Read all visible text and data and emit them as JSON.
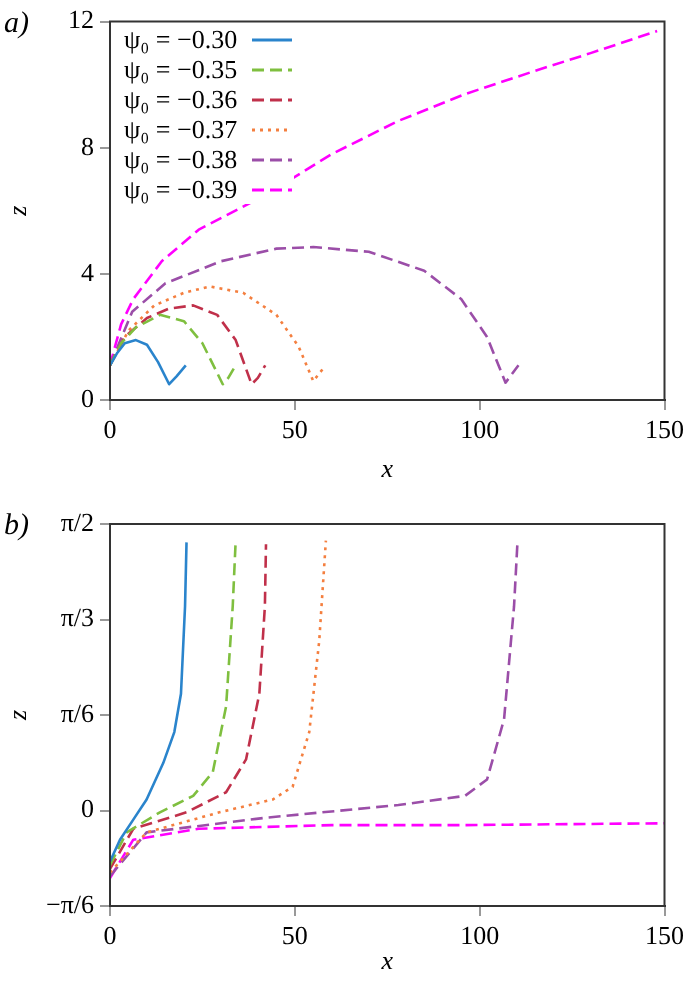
{
  "chart_data": [
    {
      "type": "line",
      "title": "a)",
      "xlabel": "x",
      "ylabel": "z",
      "xlim": [
        0,
        150
      ],
      "ylim": [
        0,
        12
      ],
      "xticks": [
        0,
        50,
        100,
        150
      ],
      "yticks": [
        0,
        4,
        8,
        12
      ],
      "legend": "top left",
      "series": [
        {
          "name": "ψ₀ = −0.30",
          "color": "#2a84cc",
          "line_style": "solid",
          "x": [
            0,
            2,
            4,
            7,
            10,
            13,
            16,
            18,
            20.5
          ],
          "values": [
            1.1,
            1.5,
            1.8,
            1.9,
            1.75,
            1.2,
            0.5,
            0.75,
            1.1
          ]
        },
        {
          "name": "ψ₀ = −0.35",
          "color": "#7fbf3f",
          "line_style": "dashed",
          "x": [
            0,
            3,
            7,
            13.5,
            20,
            25,
            30.5,
            32,
            34
          ],
          "values": [
            1.1,
            1.8,
            2.3,
            2.7,
            2.5,
            1.8,
            0.5,
            0.7,
            1.1
          ]
        },
        {
          "name": "ψ₀ = −0.36",
          "color": "#c0304a",
          "line_style": "dashed",
          "x": [
            0,
            4,
            10,
            16,
            22.5,
            29,
            34,
            38.3,
            40,
            42
          ],
          "values": [
            1.1,
            2.0,
            2.6,
            2.9,
            3.0,
            2.7,
            1.9,
            0.5,
            0.7,
            1.1
          ]
        },
        {
          "name": "ψ₀ = −0.37",
          "color": "#f47f3f",
          "line_style": "dotted",
          "x": [
            0,
            5,
            12,
            20,
            27,
            36,
            45,
            51,
            55,
            58
          ],
          "values": [
            1.1,
            2.2,
            3.0,
            3.4,
            3.6,
            3.4,
            2.7,
            1.7,
            0.6,
            1.05
          ]
        },
        {
          "name": "ψ₀ = −0.38",
          "color": "#9b4ea8",
          "line_style": "dashed",
          "x": [
            0,
            6,
            15,
            30,
            45,
            55,
            70,
            85,
            95,
            102,
            107,
            110.5
          ],
          "values": [
            1.1,
            2.8,
            3.7,
            4.4,
            4.8,
            4.85,
            4.7,
            4.1,
            3.2,
            2.0,
            0.55,
            1.1
          ]
        },
        {
          "name": "ψ₀ = −0.39",
          "color": "#ff00ff",
          "line_style": "dashed",
          "x": [
            0,
            3,
            6.3,
            14,
            24,
            42,
            60,
            78,
            96,
            114,
            130,
            148
          ],
          "values": [
            1.1,
            2.4,
            3.2,
            4.4,
            5.4,
            6.5,
            7.8,
            8.85,
            9.7,
            10.4,
            11.0,
            11.7
          ]
        }
      ]
    },
    {
      "type": "line",
      "title": "b)",
      "xlabel": "x",
      "ylabel": "z",
      "xlim": [
        0,
        150
      ],
      "ylim": [
        -0.5236,
        1.5708
      ],
      "xticks": [
        0,
        50,
        100,
        150
      ],
      "yticks": [
        {
          "value": -0.5236,
          "label": "−π/6"
        },
        0,
        {
          "value": 0.5236,
          "label": "π/6"
        },
        {
          "value": 1.0472,
          "label": "π/3"
        },
        {
          "value": 1.5708,
          "label": "π/2"
        }
      ],
      "series": [
        {
          "color": "#2a84cc",
          "line_style": "solid",
          "x": [
            0,
            2.7,
            6.3,
            9.9,
            14.4,
            17.4,
            19.2,
            20.3,
            20.7
          ],
          "values": [
            -0.28,
            -0.16,
            -0.05,
            0.06,
            0.26,
            0.43,
            0.64,
            1.12,
            1.47
          ]
        },
        {
          "color": "#7fbf3f",
          "line_style": "dashed",
          "x": [
            0,
            4.5,
            13.5,
            22.5,
            27.8,
            31.4,
            33.2,
            34
          ],
          "values": [
            -0.3,
            -0.12,
            -0.01,
            0.08,
            0.21,
            0.57,
            1.12,
            1.48
          ]
        },
        {
          "color": "#c0304a",
          "line_style": "dashed",
          "x": [
            0,
            6.3,
            20.7,
            31.4,
            36.8,
            40.4,
            41.9,
            42.2
          ],
          "values": [
            -0.32,
            -0.1,
            -0.01,
            0.1,
            0.28,
            0.64,
            1.12,
            1.46
          ]
        },
        {
          "color": "#f47f3f",
          "line_style": "dotted",
          "x": [
            0,
            9.9,
            29.6,
            44,
            49.4,
            53.9,
            56.6,
            58.4
          ],
          "values": [
            -0.34,
            -0.12,
            -0.01,
            0.06,
            0.13,
            0.43,
            0.93,
            1.48
          ]
        },
        {
          "color": "#9b4ea8",
          "line_style": "dashed",
          "x": [
            0,
            9.9,
            42,
            78,
            96,
            102,
            106.6,
            109.3,
            110.2
          ],
          "values": [
            -0.36,
            -0.12,
            -0.04,
            0.03,
            0.08,
            0.17,
            0.5,
            1.12,
            1.46
          ]
        },
        {
          "color": "#ff00ff",
          "line_style": "dashed",
          "x": [
            0,
            6.3,
            24,
            60,
            96,
            150
          ],
          "values": [
            -0.37,
            -0.16,
            -0.1,
            -0.08,
            -0.08,
            -0.07
          ]
        }
      ]
    }
  ]
}
